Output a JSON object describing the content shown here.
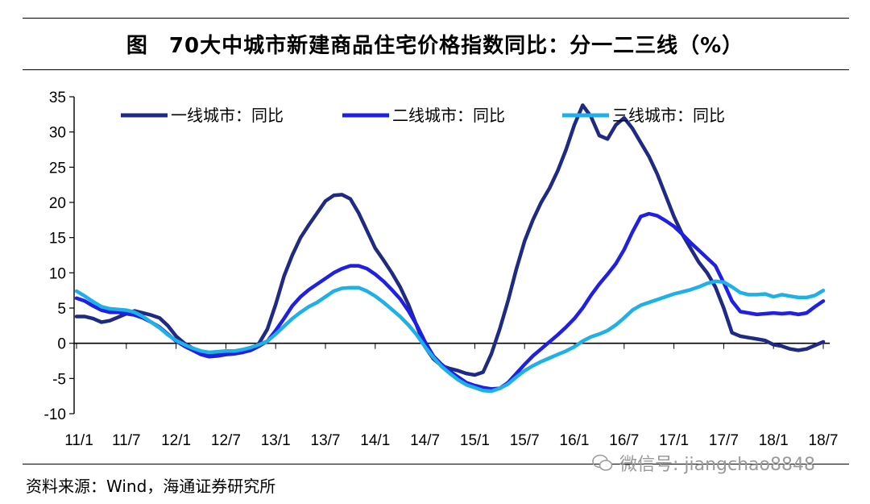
{
  "figure_label": "图",
  "title": "70大中城市新建商品住宅价格指数同比：分一二三线（%）",
  "source": "资料来源：Wind，海通证券研究所",
  "watermark": "微信号: jiangchao8848",
  "chart_data": {
    "type": "line",
    "title": "70大中城市新建商品住宅价格指数同比：分一二三线（%）",
    "xlabel": "",
    "ylabel": "",
    "ylim": [
      -10,
      35
    ],
    "yticks": [
      -10,
      -5,
      0,
      5,
      10,
      15,
      20,
      25,
      30,
      35
    ],
    "x_tick_labels": [
      "11/1",
      "11/7",
      "12/1",
      "12/7",
      "13/1",
      "13/7",
      "14/1",
      "14/7",
      "15/1",
      "15/7",
      "16/1",
      "16/7",
      "17/1",
      "17/7",
      "18/1",
      "18/7"
    ],
    "x_range": [
      "2011-01",
      "2018-07"
    ],
    "grid": false,
    "legend_position": "top",
    "series": [
      {
        "name": "一线城市：同比",
        "color": "#1F2A84",
        "points": [
          [
            "2011-01",
            3.8
          ],
          [
            "2011-02",
            3.8
          ],
          [
            "2011-03",
            3.5
          ],
          [
            "2011-04",
            3.0
          ],
          [
            "2011-05",
            3.2
          ],
          [
            "2011-06",
            3.7
          ],
          [
            "2011-07",
            4.2
          ],
          [
            "2011-08",
            4.6
          ],
          [
            "2011-09",
            4.3
          ],
          [
            "2011-10",
            4.0
          ],
          [
            "2011-11",
            3.6
          ],
          [
            "2011-12",
            2.5
          ],
          [
            "2012-01",
            1.0
          ],
          [
            "2012-02",
            0.0
          ],
          [
            "2012-03",
            -0.7
          ],
          [
            "2012-04",
            -1.3
          ],
          [
            "2012-05",
            -1.6
          ],
          [
            "2012-06",
            -1.7
          ],
          [
            "2012-07",
            -1.5
          ],
          [
            "2012-08",
            -1.4
          ],
          [
            "2012-09",
            -1.3
          ],
          [
            "2012-10",
            -0.8
          ],
          [
            "2012-11",
            0.0
          ],
          [
            "2012-12",
            2.0
          ],
          [
            "2013-01",
            5.5
          ],
          [
            "2013-02",
            9.5
          ],
          [
            "2013-03",
            12.5
          ],
          [
            "2013-04",
            15.0
          ],
          [
            "2013-05",
            16.8
          ],
          [
            "2013-06",
            18.5
          ],
          [
            "2013-07",
            20.2
          ],
          [
            "2013-08",
            21.0
          ],
          [
            "2013-09",
            21.1
          ],
          [
            "2013-10",
            20.5
          ],
          [
            "2013-11",
            18.5
          ],
          [
            "2013-12",
            16.0
          ],
          [
            "2014-01",
            13.5
          ],
          [
            "2014-02",
            11.8
          ],
          [
            "2014-03",
            10.0
          ],
          [
            "2014-04",
            8.0
          ],
          [
            "2014-05",
            5.5
          ],
          [
            "2014-06",
            2.5
          ],
          [
            "2014-07",
            -0.5
          ],
          [
            "2014-08",
            -2.2
          ],
          [
            "2014-09",
            -3.2
          ],
          [
            "2014-10",
            -3.6
          ],
          [
            "2014-11",
            -3.9
          ],
          [
            "2014-12",
            -4.3
          ],
          [
            "2015-01",
            -4.5
          ],
          [
            "2015-02",
            -4.1
          ],
          [
            "2015-03",
            -1.5
          ],
          [
            "2015-04",
            2.0
          ],
          [
            "2015-05",
            6.0
          ],
          [
            "2015-06",
            10.5
          ],
          [
            "2015-07",
            14.5
          ],
          [
            "2015-08",
            17.5
          ],
          [
            "2015-09",
            20.0
          ],
          [
            "2015-10",
            22.0
          ],
          [
            "2015-11",
            24.5
          ],
          [
            "2015-12",
            27.5
          ],
          [
            "2016-01",
            31.0
          ],
          [
            "2016-02",
            33.8
          ],
          [
            "2016-03",
            32.2
          ],
          [
            "2016-04",
            29.5
          ],
          [
            "2016-05",
            29.0
          ],
          [
            "2016-06",
            31.0
          ],
          [
            "2016-07",
            32.0
          ],
          [
            "2016-08",
            30.5
          ],
          [
            "2016-09",
            28.5
          ],
          [
            "2016-10",
            26.5
          ],
          [
            "2016-11",
            24.0
          ],
          [
            "2016-12",
            21.0
          ],
          [
            "2017-01",
            18.0
          ],
          [
            "2017-02",
            15.5
          ],
          [
            "2017-03",
            13.5
          ],
          [
            "2017-04",
            11.5
          ],
          [
            "2017-05",
            10.0
          ],
          [
            "2017-06",
            8.0
          ],
          [
            "2017-07",
            5.0
          ],
          [
            "2017-08",
            1.5
          ],
          [
            "2017-09",
            1.0
          ],
          [
            "2017-10",
            0.8
          ],
          [
            "2017-11",
            0.6
          ],
          [
            "2017-12",
            0.4
          ],
          [
            "2018-01",
            -0.2
          ],
          [
            "2018-02",
            -0.4
          ],
          [
            "2018-03",
            -0.8
          ],
          [
            "2018-04",
            -1.0
          ],
          [
            "2018-05",
            -0.8
          ],
          [
            "2018-06",
            -0.3
          ],
          [
            "2018-07",
            0.2
          ]
        ]
      },
      {
        "name": "二线城市：同比",
        "color": "#1F1FE6",
        "points": [
          [
            "2011-01",
            6.4
          ],
          [
            "2011-02",
            6.0
          ],
          [
            "2011-03",
            5.3
          ],
          [
            "2011-04",
            4.7
          ],
          [
            "2011-05",
            4.4
          ],
          [
            "2011-06",
            4.4
          ],
          [
            "2011-07",
            4.2
          ],
          [
            "2011-08",
            4.0
          ],
          [
            "2011-09",
            3.6
          ],
          [
            "2011-10",
            3.0
          ],
          [
            "2011-11",
            2.3
          ],
          [
            "2011-12",
            1.3
          ],
          [
            "2012-01",
            0.3
          ],
          [
            "2012-02",
            -0.4
          ],
          [
            "2012-03",
            -1.0
          ],
          [
            "2012-04",
            -1.6
          ],
          [
            "2012-05",
            -1.9
          ],
          [
            "2012-06",
            -1.8
          ],
          [
            "2012-07",
            -1.6
          ],
          [
            "2012-08",
            -1.5
          ],
          [
            "2012-09",
            -1.3
          ],
          [
            "2012-10",
            -1.0
          ],
          [
            "2012-11",
            -0.4
          ],
          [
            "2012-12",
            0.3
          ],
          [
            "2013-01",
            1.8
          ],
          [
            "2013-02",
            3.5
          ],
          [
            "2013-03",
            5.3
          ],
          [
            "2013-04",
            6.6
          ],
          [
            "2013-05",
            7.6
          ],
          [
            "2013-06",
            8.4
          ],
          [
            "2013-07",
            9.2
          ],
          [
            "2013-08",
            10.0
          ],
          [
            "2013-09",
            10.6
          ],
          [
            "2013-10",
            11.0
          ],
          [
            "2013-11",
            11.0
          ],
          [
            "2013-12",
            10.6
          ],
          [
            "2014-01",
            9.8
          ],
          [
            "2014-02",
            8.8
          ],
          [
            "2014-03",
            7.6
          ],
          [
            "2014-04",
            6.3
          ],
          [
            "2014-05",
            4.6
          ],
          [
            "2014-06",
            2.6
          ],
          [
            "2014-07",
            0.2
          ],
          [
            "2014-08",
            -1.8
          ],
          [
            "2014-09",
            -3.0
          ],
          [
            "2014-10",
            -4.0
          ],
          [
            "2014-11",
            -4.8
          ],
          [
            "2014-12",
            -5.6
          ],
          [
            "2015-01",
            -6.0
          ],
          [
            "2015-02",
            -6.3
          ],
          [
            "2015-03",
            -6.5
          ],
          [
            "2015-04",
            -6.4
          ],
          [
            "2015-05",
            -5.6
          ],
          [
            "2015-06",
            -4.3
          ],
          [
            "2015-07",
            -3.0
          ],
          [
            "2015-08",
            -1.8
          ],
          [
            "2015-09",
            -0.8
          ],
          [
            "2015-10",
            0.2
          ],
          [
            "2015-11",
            1.2
          ],
          [
            "2015-12",
            2.3
          ],
          [
            "2016-01",
            3.5
          ],
          [
            "2016-02",
            5.0
          ],
          [
            "2016-03",
            6.8
          ],
          [
            "2016-04",
            8.4
          ],
          [
            "2016-05",
            9.8
          ],
          [
            "2016-06",
            11.3
          ],
          [
            "2016-07",
            13.3
          ],
          [
            "2016-08",
            15.8
          ],
          [
            "2016-09",
            18.0
          ],
          [
            "2016-10",
            18.4
          ],
          [
            "2016-11",
            18.1
          ],
          [
            "2016-12",
            17.4
          ],
          [
            "2017-01",
            16.6
          ],
          [
            "2017-02",
            15.5
          ],
          [
            "2017-03",
            14.3
          ],
          [
            "2017-04",
            13.2
          ],
          [
            "2017-05",
            12.1
          ],
          [
            "2017-06",
            11.0
          ],
          [
            "2017-07",
            8.6
          ],
          [
            "2017-08",
            6.0
          ],
          [
            "2017-09",
            4.5
          ],
          [
            "2017-10",
            4.3
          ],
          [
            "2017-11",
            4.1
          ],
          [
            "2017-12",
            4.2
          ],
          [
            "2018-01",
            4.3
          ],
          [
            "2018-02",
            4.2
          ],
          [
            "2018-03",
            4.3
          ],
          [
            "2018-04",
            4.1
          ],
          [
            "2018-05",
            4.3
          ],
          [
            "2018-06",
            5.2
          ],
          [
            "2018-07",
            6.0
          ]
        ]
      },
      {
        "name": "三线城市：同比",
        "color": "#1EB0E6",
        "points": [
          [
            "2011-01",
            7.4
          ],
          [
            "2011-02",
            6.7
          ],
          [
            "2011-03",
            5.9
          ],
          [
            "2011-04",
            5.2
          ],
          [
            "2011-05",
            4.9
          ],
          [
            "2011-06",
            4.8
          ],
          [
            "2011-07",
            4.7
          ],
          [
            "2011-08",
            4.4
          ],
          [
            "2011-09",
            3.8
          ],
          [
            "2011-10",
            3.0
          ],
          [
            "2011-11",
            2.2
          ],
          [
            "2011-12",
            1.2
          ],
          [
            "2012-01",
            0.4
          ],
          [
            "2012-02",
            -0.2
          ],
          [
            "2012-03",
            -0.7
          ],
          [
            "2012-04",
            -1.1
          ],
          [
            "2012-05",
            -1.3
          ],
          [
            "2012-06",
            -1.2
          ],
          [
            "2012-07",
            -1.1
          ],
          [
            "2012-08",
            -1.1
          ],
          [
            "2012-09",
            -0.9
          ],
          [
            "2012-10",
            -0.6
          ],
          [
            "2012-11",
            -0.2
          ],
          [
            "2012-12",
            0.3
          ],
          [
            "2013-01",
            1.3
          ],
          [
            "2013-02",
            2.4
          ],
          [
            "2013-03",
            3.5
          ],
          [
            "2013-04",
            4.4
          ],
          [
            "2013-05",
            5.2
          ],
          [
            "2013-06",
            5.8
          ],
          [
            "2013-07",
            6.6
          ],
          [
            "2013-08",
            7.4
          ],
          [
            "2013-09",
            7.8
          ],
          [
            "2013-10",
            7.9
          ],
          [
            "2013-11",
            7.9
          ],
          [
            "2013-12",
            7.4
          ],
          [
            "2014-01",
            6.7
          ],
          [
            "2014-02",
            5.8
          ],
          [
            "2014-03",
            4.8
          ],
          [
            "2014-04",
            3.8
          ],
          [
            "2014-05",
            2.6
          ],
          [
            "2014-06",
            1.2
          ],
          [
            "2014-07",
            -0.5
          ],
          [
            "2014-08",
            -2.0
          ],
          [
            "2014-09",
            -3.3
          ],
          [
            "2014-10",
            -4.3
          ],
          [
            "2014-11",
            -5.2
          ],
          [
            "2014-12",
            -5.9
          ],
          [
            "2015-01",
            -6.3
          ],
          [
            "2015-02",
            -6.7
          ],
          [
            "2015-03",
            -6.8
          ],
          [
            "2015-04",
            -6.4
          ],
          [
            "2015-05",
            -5.8
          ],
          [
            "2015-06",
            -4.8
          ],
          [
            "2015-07",
            -3.9
          ],
          [
            "2015-08",
            -3.2
          ],
          [
            "2015-09",
            -2.6
          ],
          [
            "2015-10",
            -2.1
          ],
          [
            "2015-11",
            -1.6
          ],
          [
            "2015-12",
            -1.1
          ],
          [
            "2016-01",
            -0.5
          ],
          [
            "2016-02",
            0.3
          ],
          [
            "2016-03",
            0.9
          ],
          [
            "2016-04",
            1.3
          ],
          [
            "2016-05",
            1.8
          ],
          [
            "2016-06",
            2.6
          ],
          [
            "2016-07",
            3.6
          ],
          [
            "2016-08",
            4.7
          ],
          [
            "2016-09",
            5.4
          ],
          [
            "2016-10",
            5.8
          ],
          [
            "2016-11",
            6.2
          ],
          [
            "2016-12",
            6.6
          ],
          [
            "2017-01",
            7.0
          ],
          [
            "2017-02",
            7.3
          ],
          [
            "2017-03",
            7.6
          ],
          [
            "2017-04",
            8.0
          ],
          [
            "2017-05",
            8.5
          ],
          [
            "2017-06",
            8.8
          ],
          [
            "2017-07",
            8.7
          ],
          [
            "2017-08",
            8.0
          ],
          [
            "2017-09",
            7.2
          ],
          [
            "2017-10",
            6.9
          ],
          [
            "2017-11",
            6.9
          ],
          [
            "2017-12",
            7.0
          ],
          [
            "2018-01",
            6.6
          ],
          [
            "2018-02",
            6.9
          ],
          [
            "2018-03",
            6.7
          ],
          [
            "2018-04",
            6.5
          ],
          [
            "2018-05",
            6.5
          ],
          [
            "2018-06",
            6.8
          ],
          [
            "2018-07",
            7.5
          ]
        ]
      }
    ]
  }
}
